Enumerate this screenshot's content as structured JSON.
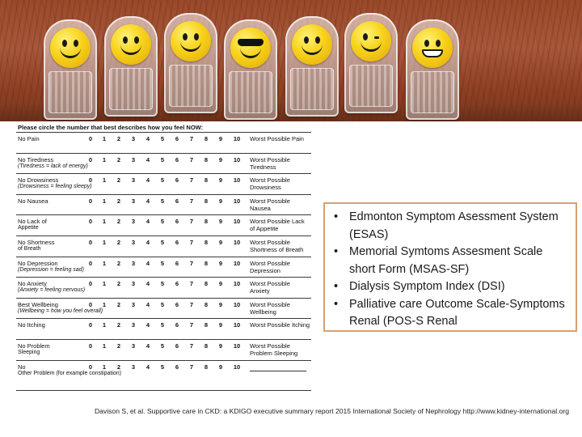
{
  "form": {
    "heading": "Please circle the number that best describes how you feel NOW:",
    "scale": [
      "0",
      "1",
      "2",
      "3",
      "4",
      "5",
      "6",
      "7",
      "8",
      "9",
      "10"
    ],
    "rows": [
      {
        "label": "No Pain",
        "sub": "",
        "worst": "Worst Possible Pain"
      },
      {
        "label": "No Tiredness",
        "sub": "(Tiredness = lack of energy)",
        "worst": "Worst Possible Tiredness"
      },
      {
        "label": "No Drowsiness",
        "sub": "(Drowsiness = feeling sleepy)",
        "worst": "Worst Possible Drowsiness"
      },
      {
        "label": "No Nausea",
        "sub": "",
        "worst": "Worst Possible Nausea"
      },
      {
        "label": "No Lack of",
        "sub": "Appetite",
        "worst": "Worst Possible Lack of Appetite"
      },
      {
        "label": "No Shortness",
        "sub": "of Breath",
        "worst": "Worst Possible Shortness of Breath"
      },
      {
        "label": "No Depression",
        "sub": "(Depression = feeling sad)",
        "worst": "Worst Possible Depression"
      },
      {
        "label": "No Anxiety",
        "sub": "(Anxiety = feeling nervous)",
        "worst": "Worst Possible Anxiety"
      },
      {
        "label": "Best Wellbeing",
        "sub": "(Wellbeing = how you feel overall)",
        "worst": "Worst Possible Wellbeing"
      },
      {
        "label": "No Itching",
        "sub": "",
        "worst": "Worst Possible Itching"
      },
      {
        "label": "No Problem",
        "sub": "Sleeping",
        "worst": "Worst Possible Problem Sleeping"
      },
      {
        "label": "No",
        "sub": "Other Problem (for example constipation)",
        "worst": ""
      }
    ]
  },
  "instruments": [
    "Edmonton Symptom Asessment System (ESAS)",
    "Memorial Symtoms Assesment Scale short Form (MSAS-SF)",
    "Dialysis Symptom Index (DSI)",
    "Palliative care Outcome Scale-Symptoms Renal (POS-S Renal"
  ],
  "bullet": "•",
  "citation": "Davison S, et al. Supportive care in CKD: a KDIGO executive summary report 2015 International Society of Nephrology http://www.kidney-international.org",
  "photo": {
    "faces": [
      "smile-icon",
      "smile-icon",
      "smile-icon",
      "sunglasses-face-icon",
      "smile-icon",
      "wink-face-icon",
      "grin-face-icon"
    ]
  },
  "colors": {
    "box_border": "#d8a070",
    "face": "#f7d21a",
    "photo_bg": "#9a4a2a"
  }
}
